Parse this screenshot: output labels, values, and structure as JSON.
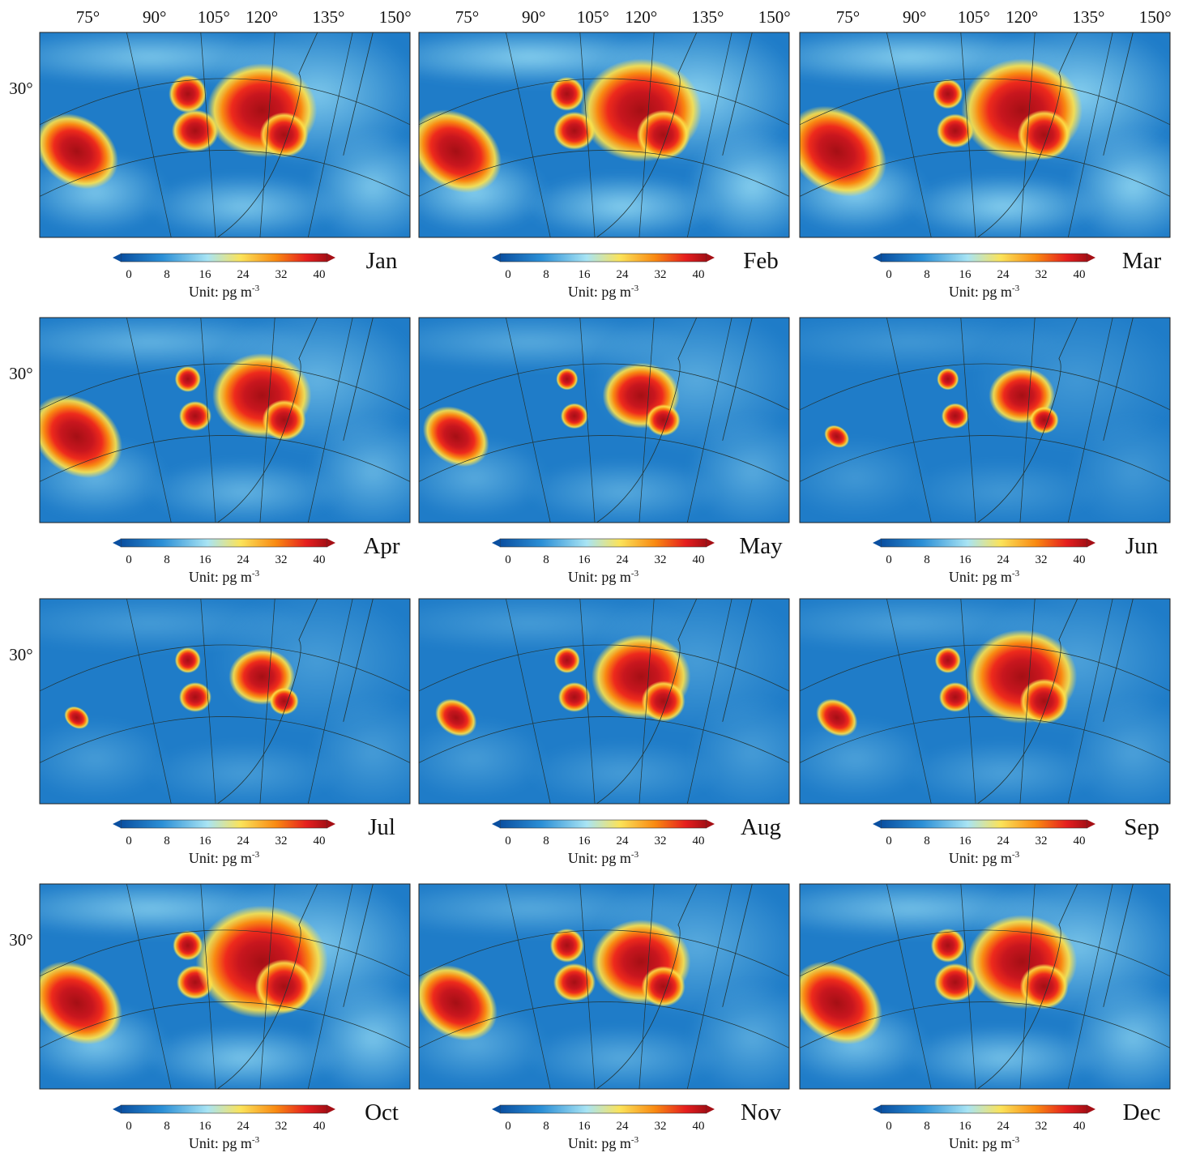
{
  "longitude_labels": [
    "75°",
    "90°",
    "105°",
    "120°",
    "135°",
    "150°"
  ],
  "latitude_label": "30°",
  "colorbar": {
    "ticks": [
      0,
      8,
      16,
      24,
      32,
      40
    ],
    "unit_label": "Unit: pg m",
    "unit_superscript": "-3"
  },
  "panels": [
    {
      "month": "Jan"
    },
    {
      "month": "Feb"
    },
    {
      "month": "Mar"
    },
    {
      "month": "Apr"
    },
    {
      "month": "May"
    },
    {
      "month": "Jun"
    },
    {
      "month": "Jul"
    },
    {
      "month": "Aug"
    },
    {
      "month": "Sep"
    },
    {
      "month": "Oct"
    },
    {
      "month": "Nov"
    },
    {
      "month": "Dec"
    }
  ]
}
